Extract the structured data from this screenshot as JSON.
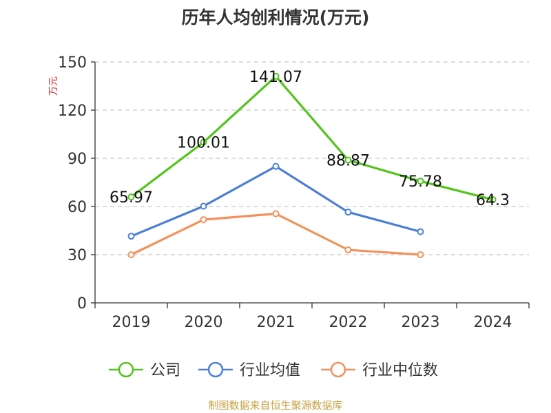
{
  "chart_data": {
    "type": "line",
    "title": "历年人均创利情况(万元)",
    "ylabel": "万元",
    "categories": [
      "2019",
      "2020",
      "2021",
      "2022",
      "2023",
      "2024"
    ],
    "ylim": [
      0,
      150
    ],
    "yticks": [
      0,
      30,
      60,
      90,
      120,
      150
    ],
    "grid": true,
    "legend_position": "bottom",
    "series": [
      {
        "name": "公司",
        "color": "#52c41a",
        "values": [
          65.97,
          100.01,
          141.07,
          88.87,
          75.78,
          64.3
        ],
        "labels": [
          "65.97",
          "100.01",
          "141.07",
          "88.87",
          "75.78",
          "64.3"
        ]
      },
      {
        "name": "行业均值",
        "color": "#4a7fd8",
        "values": [
          41.5,
          60.2,
          85.0,
          56.5,
          44.3,
          null
        ],
        "labels": []
      },
      {
        "name": "行业中位数",
        "color": "#f5905a",
        "values": [
          30.0,
          51.8,
          55.5,
          33.0,
          30.0,
          null
        ],
        "labels": []
      }
    ]
  },
  "footer": {
    "source": "制图数据来自恒生聚源数据库"
  }
}
